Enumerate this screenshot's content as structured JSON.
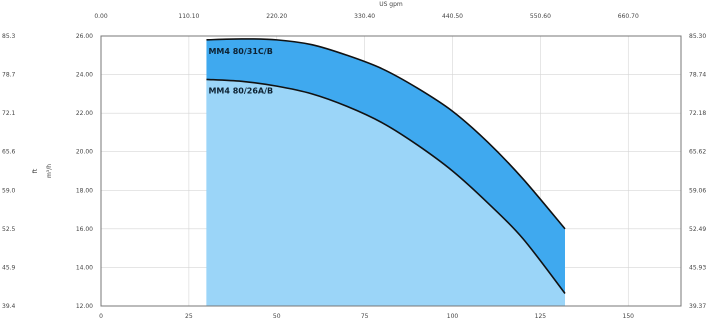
{
  "chart_data": {
    "type": "area",
    "title": "",
    "x_bottom": {
      "label": "",
      "ticks": [
        0,
        25,
        50,
        75,
        100,
        125,
        150
      ],
      "tick_labels": [
        "0",
        "25",
        "50",
        "75",
        "100",
        "125",
        "150"
      ],
      "range": [
        0,
        165
      ]
    },
    "x_top": {
      "label": "US gpm",
      "tick_labels": [
        "0.00",
        "110.10",
        "220.20",
        "330.40",
        "440.50",
        "550.60",
        "660.70"
      ]
    },
    "y_left": {
      "label": "m³/h",
      "ticks": [
        12,
        14,
        16,
        18,
        20,
        22,
        24,
        26
      ],
      "tick_labels": [
        "12.00",
        "14.00",
        "16.00",
        "18.00",
        "20.00",
        "22.00",
        "24.00",
        "26.00"
      ],
      "range": [
        12,
        26
      ]
    },
    "y_left_outer": {
      "label": "ft",
      "tick_labels": [
        "39.4",
        "45.9",
        "52.5",
        "59.0",
        "65.6",
        "72.1",
        "78.7",
        "85.3"
      ]
    },
    "y_right": {
      "label": "",
      "tick_labels": [
        "39.37",
        "45.93",
        "52.49",
        "59.06",
        "65.62",
        "72.18",
        "78.74",
        "85.30"
      ]
    },
    "series": [
      {
        "name": "MM4 80/31C/B",
        "color": "#3fa9ef",
        "x": [
          30,
          40,
          50,
          60,
          70,
          80,
          90,
          100,
          110,
          120,
          132
        ],
        "y": [
          25.8,
          25.85,
          25.8,
          25.55,
          25.0,
          24.3,
          23.3,
          22.1,
          20.5,
          18.6,
          16.0
        ]
      },
      {
        "name": "MM4 80/26A/B",
        "color": "#9bd5f8",
        "x": [
          30,
          40,
          50,
          60,
          70,
          80,
          90,
          100,
          110,
          120,
          132
        ],
        "y": [
          23.75,
          23.65,
          23.4,
          23.0,
          22.35,
          21.5,
          20.35,
          19.0,
          17.35,
          15.5,
          12.65
        ]
      }
    ],
    "grid": true,
    "legend": "inline-labels"
  }
}
